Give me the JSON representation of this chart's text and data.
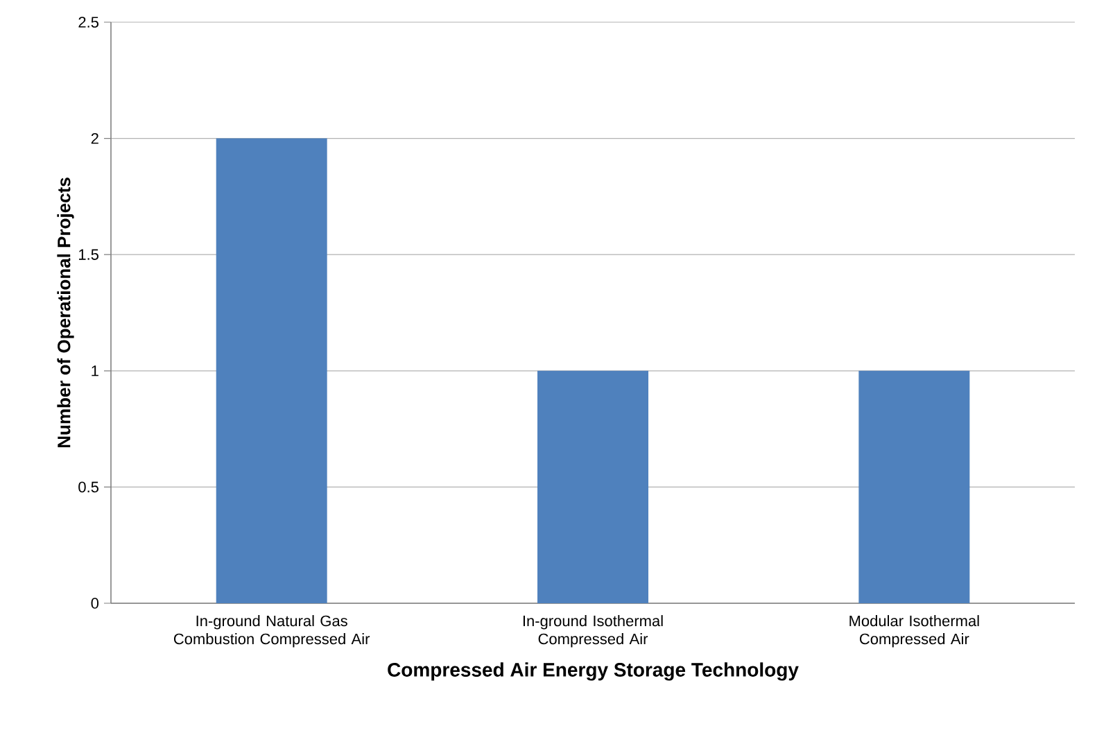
{
  "chart_data": {
    "type": "bar",
    "xlabel": "Compressed Air Energy Storage Technology",
    "ylabel": "Number of Operational Projects",
    "categories": [
      "In-ground Natural Gas Combustion Compressed Air",
      "In-ground Isothermal Compressed Air",
      "Modular Isothermal Compressed Air"
    ],
    "values": [
      2,
      1,
      1
    ],
    "color": "#4f81bd",
    "ylim": [
      0,
      2.5
    ],
    "yticks": [
      0,
      0.5,
      1,
      1.5,
      2,
      2.5
    ],
    "grid": "y"
  }
}
